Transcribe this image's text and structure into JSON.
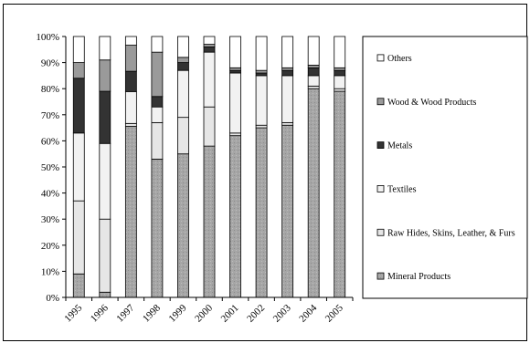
{
  "chart_data": {
    "type": "bar",
    "stacked": "percent",
    "categories": [
      "1995",
      "1996",
      "1997",
      "1998",
      "1999",
      "2000",
      "2001",
      "2002",
      "2003",
      "2004",
      "2005"
    ],
    "series": [
      {
        "name": "Mineral Products",
        "color": "#a0a0a0",
        "values": [
          9,
          2,
          59,
          53,
          55,
          58,
          62,
          65,
          66,
          80,
          79
        ]
      },
      {
        "name": "Raw Hides, Skins, Leather, & Furs",
        "color": "#e6e6e6",
        "values": [
          28,
          28,
          1,
          14,
          14,
          15,
          1,
          1,
          1,
          1,
          1
        ]
      },
      {
        "name": "Textiles",
        "color": "#f2f2f2",
        "values": [
          26,
          29,
          11,
          6,
          18,
          21,
          23,
          19,
          18,
          4,
          5
        ]
      },
      {
        "name": "Metals",
        "color": "#333333",
        "values": [
          21,
          20,
          7,
          4,
          3,
          2,
          1,
          1,
          2,
          3,
          2
        ]
      },
      {
        "name": "Wood & Wood Products",
        "color": "#9a9a9a",
        "values": [
          6,
          12,
          9,
          17,
          2,
          1,
          1,
          1,
          1,
          1,
          1
        ]
      },
      {
        "name": "Others",
        "color": "#ffffff",
        "values": [
          10,
          9,
          3,
          6,
          8,
          3,
          12,
          13,
          12,
          11,
          12
        ]
      }
    ],
    "yticks": [
      "0%",
      "10%",
      "20%",
      "30%",
      "40%",
      "50%",
      "60%",
      "70%",
      "80%",
      "90%",
      "100%"
    ],
    "ylim": [
      0,
      100
    ],
    "legend_position": "right",
    "legend_order": [
      "Others",
      "Wood & Wood Products",
      "Metals",
      "Textiles",
      "Raw Hides, Skins, Leather, & Furs",
      "Mineral Products"
    ],
    "title": "",
    "xlabel": "",
    "ylabel": ""
  }
}
